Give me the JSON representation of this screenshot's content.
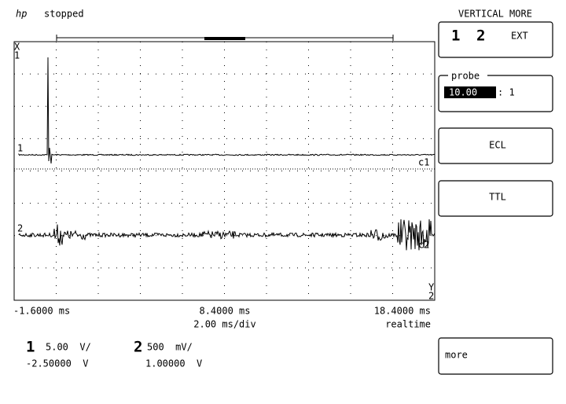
{
  "header": {
    "logo": "hp",
    "status": "stopped"
  },
  "softkeys": {
    "title": "VERTICAL MORE",
    "channels": [
      "1",
      "2",
      "EXT"
    ],
    "probe": {
      "label": "probe",
      "value": "10.00",
      "ratio": ": 1"
    },
    "ecl": "ECL",
    "ttl": "TTL",
    "more": "more"
  },
  "display": {
    "markers": {
      "x": "X",
      "x_channel": "1",
      "y": "Y",
      "y_channel": "2",
      "ch1": "1",
      "ch2": "2",
      "c1": "c1",
      "c2": "c2"
    }
  },
  "timebase": {
    "left": "-1.6000 ms",
    "center": "8.4000 ms",
    "right": "18.4000 ms",
    "scale": "2.00 ms/div",
    "mode": "realtime"
  },
  "channels": [
    {
      "number": "1",
      "scale": "5.00  V/",
      "offset": "-2.50000  V"
    },
    {
      "number": "2",
      "scale": "500  mV/",
      "offset": "1.00000  V"
    }
  ]
}
